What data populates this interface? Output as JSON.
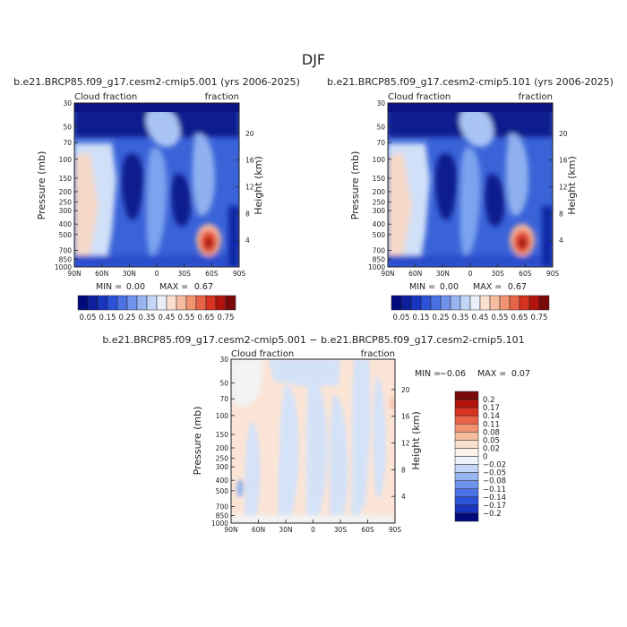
{
  "figure": {
    "season": "DJF",
    "shared_ticks": {
      "pressure": [
        "30",
        "50",
        "70",
        "100",
        "150",
        "200",
        "250",
        "300",
        "400",
        "500",
        "700",
        "850",
        "1000"
      ],
      "height": [
        "20",
        "16",
        "12",
        "8",
        "4"
      ],
      "latitude": [
        "90N",
        "60N",
        "30N",
        "0",
        "30S",
        "60S",
        "90S"
      ]
    }
  },
  "chart_data": [
    {
      "id": "panel1",
      "type": "heatmap",
      "title": "b.e21.BRCP85.f09_g17.cesm2-cmip5.001 (yrs 2006-2025)",
      "subtitle_left": "Cloud fraction",
      "subtitle_right": "fraction",
      "ylabel": "Pressure (mb)",
      "ylabel_right": "Height (km)",
      "xlim": [
        90,
        -90
      ],
      "ylim": [
        1000,
        30
      ],
      "yscale": "log",
      "min_label": "MIN =",
      "min_value": "0.00",
      "max_label": "MAX =",
      "max_value": "0.67",
      "colorbar_labels": [
        "0.05",
        "0.15",
        "0.25",
        "0.35",
        "0.45",
        "0.55",
        "0.65",
        "0.75"
      ]
    },
    {
      "id": "panel2",
      "type": "heatmap",
      "title": "b.e21.BRCP85.f09_g17.cesm2-cmip5.101 (yrs 2006-2025)",
      "subtitle_left": "Cloud fraction",
      "subtitle_right": "fraction",
      "ylabel": "Pressure (mb)",
      "ylabel_right": "Height (km)",
      "xlim": [
        90,
        -90
      ],
      "ylim": [
        1000,
        30
      ],
      "yscale": "log",
      "min_label": "MIN =",
      "min_value": "0.00",
      "max_label": "MAX =",
      "max_value": "0.67",
      "colorbar_labels": [
        "0.05",
        "0.15",
        "0.25",
        "0.35",
        "0.45",
        "0.55",
        "0.65",
        "0.75"
      ]
    },
    {
      "id": "panel3",
      "type": "heatmap",
      "title": "b.e21.BRCP85.f09_g17.cesm2-cmip5.001 − b.e21.BRCP85.f09_g17.cesm2-cmip5.101",
      "subtitle_left": "Cloud fraction",
      "subtitle_right": "fraction",
      "ylabel": "Pressure (mb)",
      "ylabel_right": "Height (km)",
      "xlim": [
        90,
        -90
      ],
      "ylim": [
        1000,
        30
      ],
      "yscale": "log",
      "min_label": "MIN =",
      "min_value": "−0.06",
      "max_label": "MAX =",
      "max_value": "0.07",
      "colorbar_labels": [
        "0.2",
        "0.17",
        "0.14",
        "0.11",
        "0.08",
        "0.05",
        "0.02",
        "0",
        "−0.02",
        "−0.05",
        "−0.08",
        "−0.11",
        "−0.14",
        "−0.17",
        "−0.2"
      ]
    }
  ]
}
